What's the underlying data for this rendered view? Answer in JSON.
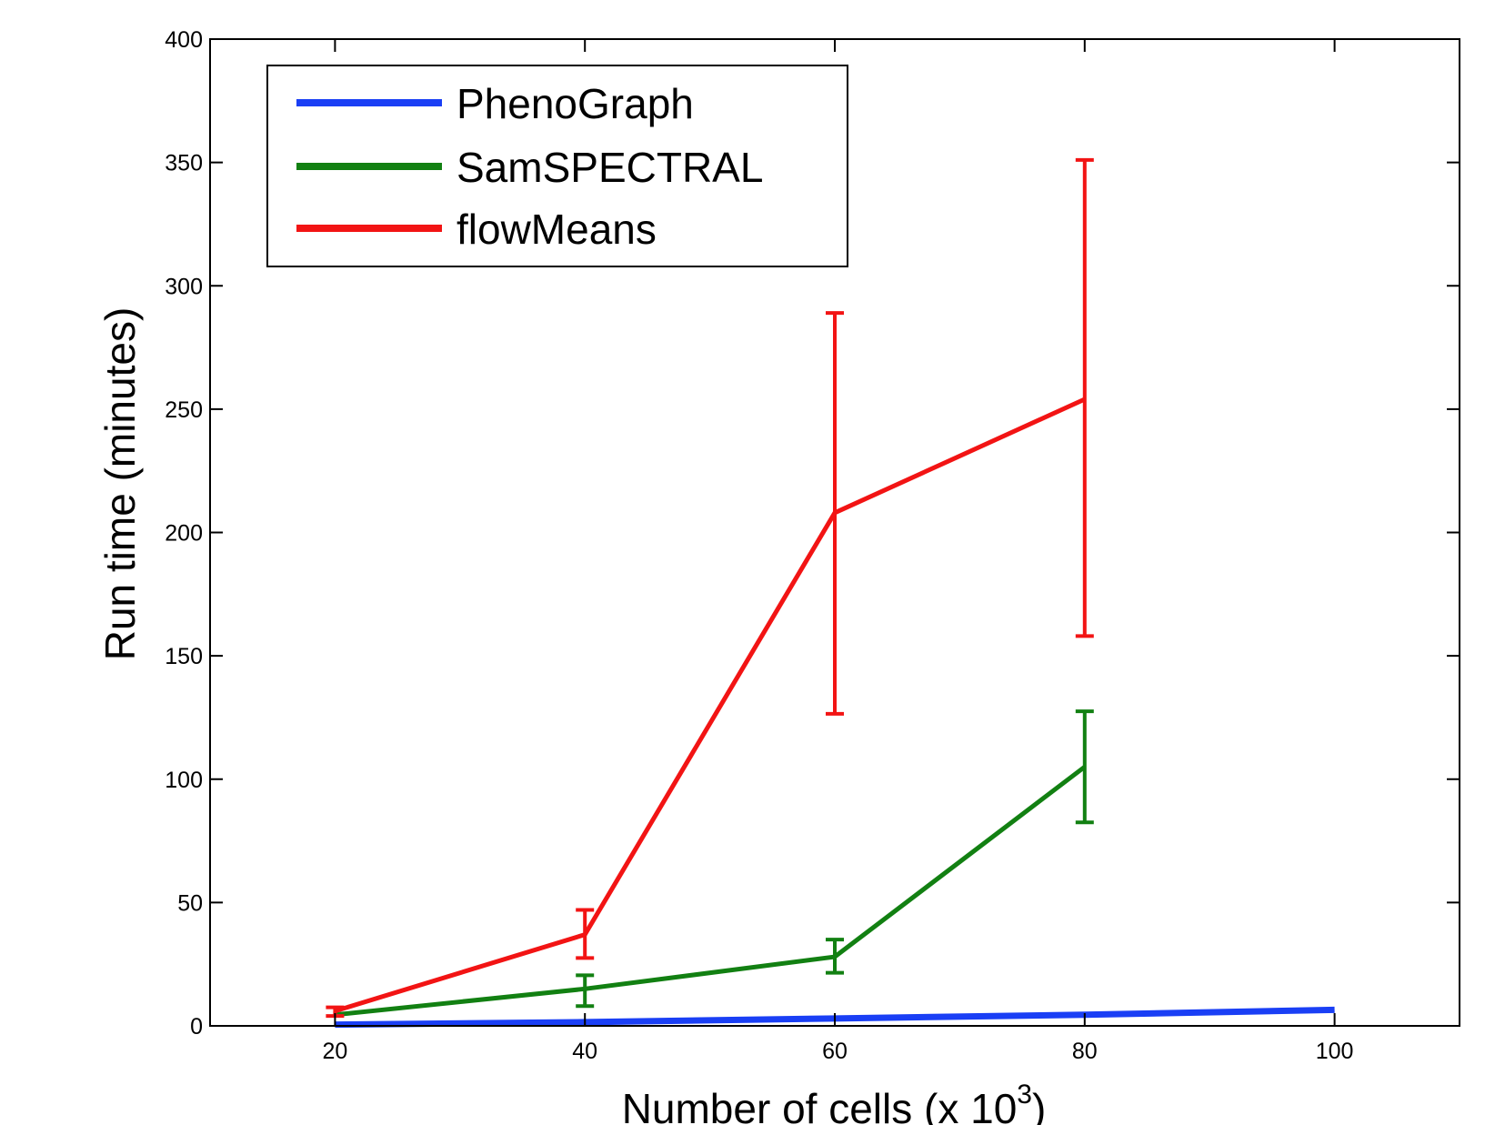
{
  "chart_data": {
    "type": "line",
    "xlabel": "Number of cells (x 10",
    "xlabel_superscript": "3",
    "xlabel_suffix": ")",
    "ylabel": "Run time (minutes)",
    "xlim": [
      10,
      110
    ],
    "ylim": [
      0,
      400
    ],
    "x_ticks": [
      20,
      40,
      60,
      80,
      100
    ],
    "y_ticks": [
      0,
      50,
      100,
      150,
      200,
      250,
      300,
      350,
      400
    ],
    "grid": false,
    "legend_position": "top-left",
    "series": [
      {
        "name": "PhenoGraph",
        "color": "#1a3ff5",
        "x": [
          20,
          40,
          60,
          80,
          100
        ],
        "y": [
          0.5,
          1.5,
          3,
          4.5,
          6.5
        ],
        "err_low": null,
        "err_high": null
      },
      {
        "name": "SamSPECTRAL",
        "color": "#128012",
        "x": [
          20,
          40,
          60,
          80
        ],
        "y": [
          4.5,
          15,
          28,
          105
        ],
        "err_low": [
          null,
          8,
          21.5,
          82.5
        ],
        "err_high": [
          null,
          20.5,
          35,
          127.5
        ]
      },
      {
        "name": "flowMeans",
        "color": "#f21414",
        "x": [
          20,
          40,
          60,
          80
        ],
        "y": [
          6,
          37,
          208,
          254
        ],
        "err_low": [
          4,
          27.5,
          126.5,
          158
        ],
        "err_high": [
          7.5,
          47,
          289,
          351
        ]
      }
    ]
  }
}
